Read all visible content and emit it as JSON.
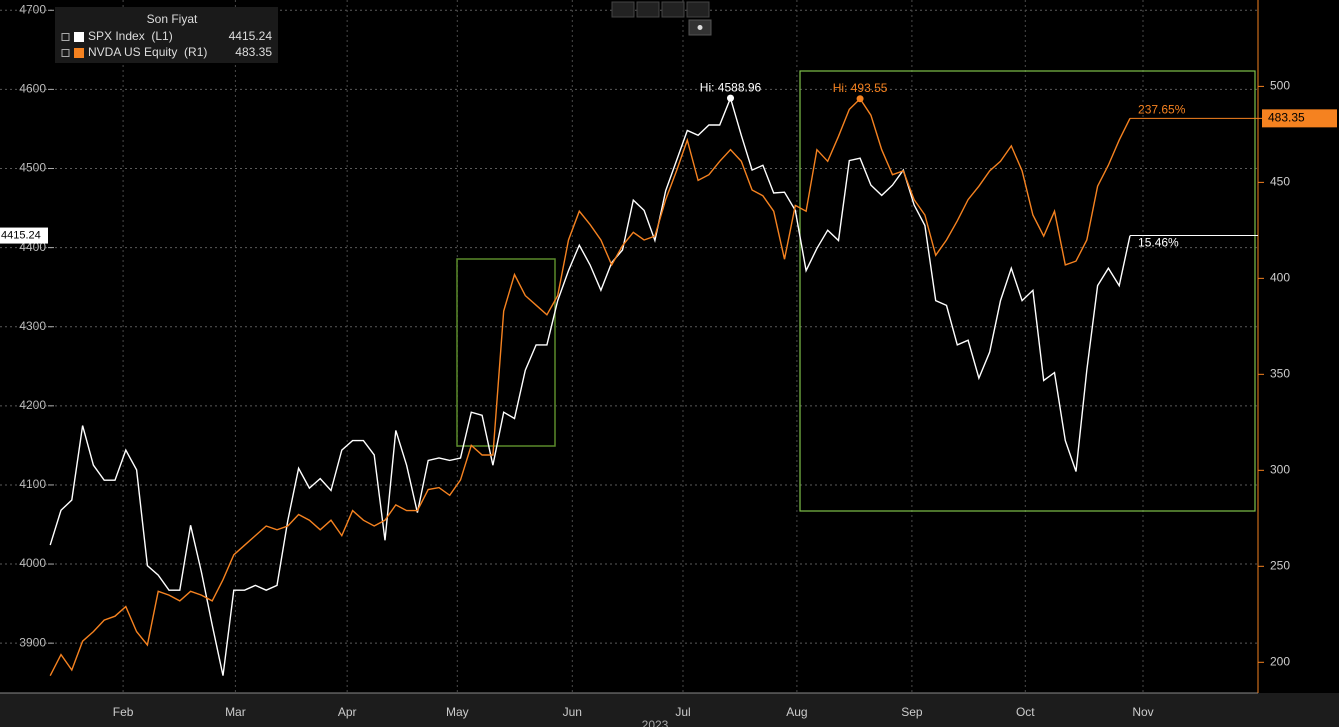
{
  "chart_data": {
    "type": "line",
    "legend_title": "Son Fiyat",
    "year_label": "2023",
    "x": [
      0,
      2,
      4,
      6,
      8,
      10,
      12,
      14,
      16,
      18,
      20,
      22,
      24,
      26,
      28,
      30,
      32,
      34,
      36,
      38,
      40,
      42,
      44,
      46,
      48,
      50,
      52,
      54,
      56,
      58,
      60,
      62,
      64,
      66,
      68,
      70,
      72,
      74,
      76,
      78,
      80,
      82,
      84,
      86,
      88,
      90,
      92,
      94,
      96,
      98,
      100,
      102,
      104,
      106,
      108,
      110,
      112,
      114,
      116,
      118,
      120,
      122,
      124,
      126,
      128,
      130,
      132,
      134,
      136,
      138,
      140,
      142,
      144,
      146,
      148,
      150,
      152,
      154,
      156,
      158,
      160,
      162,
      164,
      166,
      168,
      170,
      172,
      174,
      176,
      178,
      180,
      182,
      184,
      186,
      188,
      190,
      192,
      194,
      196,
      198,
      200
    ],
    "xlim": [
      -9.3,
      223.7
    ],
    "xticks": [
      {
        "value": 13.5,
        "label": "Feb"
      },
      {
        "value": 34.3,
        "label": "Mar"
      },
      {
        "value": 55,
        "label": "Apr"
      },
      {
        "value": 75.4,
        "label": "May"
      },
      {
        "value": 96.7,
        "label": "Jun"
      },
      {
        "value": 117.2,
        "label": "Jul"
      },
      {
        "value": 138.3,
        "label": "Aug"
      },
      {
        "value": 159.6,
        "label": "Sep"
      },
      {
        "value": 180.6,
        "label": "Oct"
      },
      {
        "value": 202.4,
        "label": "Nov"
      }
    ],
    "ylim": [
      3837,
      4713
    ],
    "yticks": [
      3900,
      4000,
      4100,
      4200,
      4300,
      4400,
      4500,
      4600,
      4700
    ],
    "y2lim": [
      184,
      545
    ],
    "y2ticks": [
      200,
      250,
      300,
      350,
      400,
      450,
      500
    ],
    "grid": true,
    "series": [
      {
        "name": "SPX Index  (L1)",
        "color": "#ffffff",
        "axis": "y",
        "high_label": "Hi: 4588.96",
        "change_label": "15.46%",
        "values": [
          4024,
          4068,
          4081,
          4175,
          4125,
          4106,
          4106,
          4144,
          4119,
          3998,
          3986,
          3967,
          3967,
          4049,
          3990,
          3923,
          3859,
          3967,
          3967,
          3973,
          3967,
          3973,
          4055,
          4121,
          4096,
          4108,
          4093,
          4144,
          4156,
          4156,
          4138,
          4030,
          4169,
          4125,
          4065,
          4131,
          4134,
          4131,
          4134,
          4192,
          4188,
          4125,
          4192,
          4184,
          4245,
          4277,
          4277,
          4333,
          4371,
          4403,
          4378,
          4346,
          4381,
          4397,
          4460,
          4447,
          4409,
          4472,
          4510,
          4548,
          4542,
          4555,
          4555,
          4588.96,
          4542,
          4498,
          4504,
          4469,
          4470,
          4447,
          4371,
          4399,
          4422,
          4409,
          4510,
          4513,
          4479,
          4466,
          4479,
          4498,
          4454,
          4428,
          4333,
          4327,
          4277,
          4283,
          4235,
          4268,
          4333,
          4374,
          4333,
          4346,
          4232,
          4242,
          4156,
          4117,
          4245,
          4352,
          4374,
          4352,
          4415.24
        ]
      },
      {
        "name": "NVDA US Equity  (R1)",
        "color": "#f58220",
        "axis": "y2",
        "high_label": "Hi: 493.55",
        "change_label": "237.65%",
        "values": [
          193,
          204,
          196,
          211,
          216,
          222,
          224,
          229,
          216,
          209,
          237,
          235,
          232,
          237,
          235,
          232,
          243,
          256,
          261,
          266,
          271,
          269,
          271,
          277,
          274,
          269,
          274,
          266,
          279,
          274,
          271,
          274,
          282,
          279,
          279,
          290,
          291,
          287,
          295,
          313,
          308,
          308,
          383,
          402,
          391,
          386,
          381,
          391,
          420,
          435,
          428,
          420,
          407,
          417,
          424,
          420,
          422,
          441,
          456,
          472,
          451,
          454,
          461,
          467,
          461,
          446,
          443,
          435,
          410,
          438,
          435,
          467,
          461,
          474,
          488,
          493.55,
          485,
          467,
          454,
          456,
          441,
          433,
          412,
          420,
          430,
          441,
          448,
          456,
          461,
          469,
          456,
          433,
          422,
          435,
          407,
          409,
          420,
          448,
          459,
          472,
          483.35
        ]
      }
    ]
  }
}
